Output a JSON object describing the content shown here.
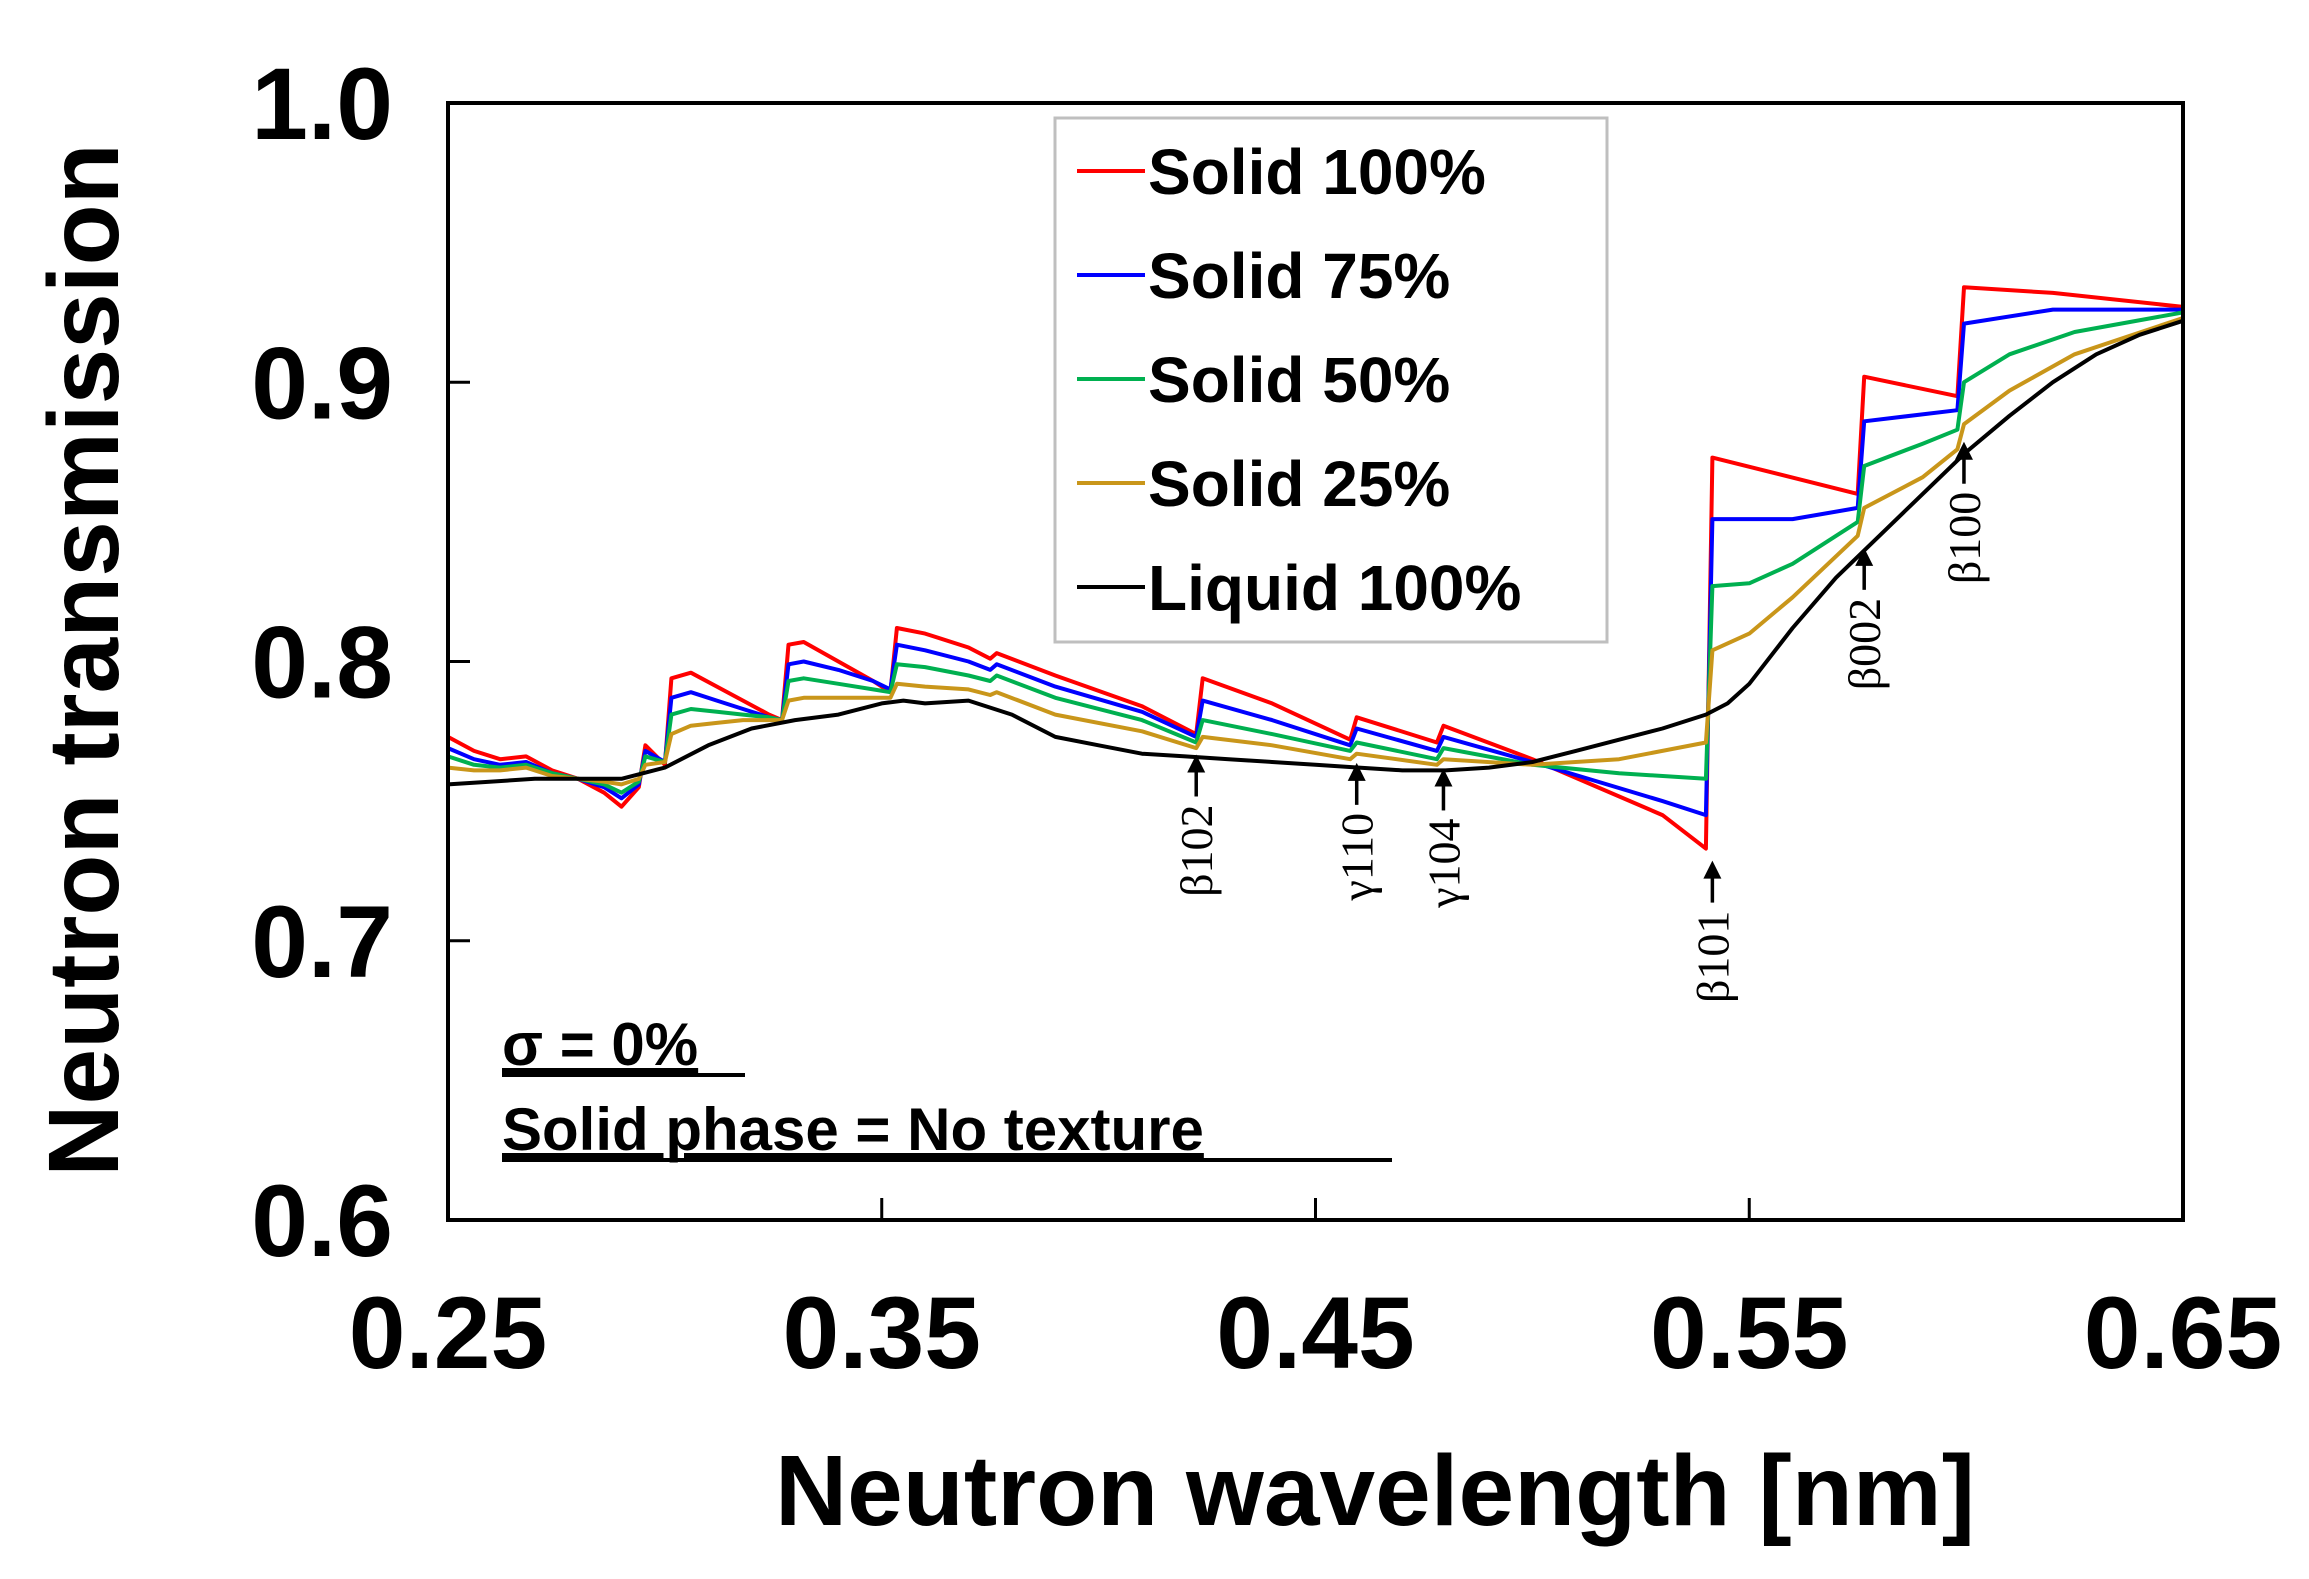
{
  "chart_data": {
    "type": "line",
    "xlabel": "Neutron wavelength [nm]",
    "ylabel": "Neutron transmission",
    "xlim": [
      0.25,
      0.65
    ],
    "ylim": [
      0.6,
      1.0
    ],
    "xticks": [
      "0.25",
      "0.35",
      "0.45",
      "0.55",
      "0.65"
    ],
    "yticks": [
      "0.6",
      "0.7",
      "0.8",
      "0.9",
      "1.0"
    ],
    "grid": false,
    "legend_position": "top-center",
    "series": [
      {
        "name": "Solid 100%",
        "color": "#ff0000",
        "points": [
          [
            0.25,
            0.773
          ],
          [
            0.256,
            0.768
          ],
          [
            0.262,
            0.765
          ],
          [
            0.268,
            0.766
          ],
          [
            0.274,
            0.761
          ],
          [
            0.28,
            0.758
          ],
          [
            0.286,
            0.753
          ],
          [
            0.29,
            0.748
          ],
          [
            0.294,
            0.755
          ],
          [
            0.2955,
            0.77
          ],
          [
            0.3,
            0.763
          ],
          [
            0.3015,
            0.794
          ],
          [
            0.306,
            0.796
          ],
          [
            0.312,
            0.791
          ],
          [
            0.318,
            0.786
          ],
          [
            0.324,
            0.781
          ],
          [
            0.327,
            0.779
          ],
          [
            0.3285,
            0.806
          ],
          [
            0.332,
            0.807
          ],
          [
            0.34,
            0.8
          ],
          [
            0.348,
            0.793
          ],
          [
            0.352,
            0.789
          ],
          [
            0.3535,
            0.812
          ],
          [
            0.36,
            0.81
          ],
          [
            0.37,
            0.805
          ],
          [
            0.375,
            0.801
          ],
          [
            0.3765,
            0.803
          ],
          [
            0.39,
            0.795
          ],
          [
            0.41,
            0.784
          ],
          [
            0.4225,
            0.774
          ],
          [
            0.424,
            0.794
          ],
          [
            0.44,
            0.785
          ],
          [
            0.458,
            0.772
          ],
          [
            0.4595,
            0.78
          ],
          [
            0.478,
            0.771
          ],
          [
            0.4795,
            0.777
          ],
          [
            0.5,
            0.765
          ],
          [
            0.53,
            0.745
          ],
          [
            0.54,
            0.733
          ],
          [
            0.5415,
            0.873
          ],
          [
            0.575,
            0.86
          ],
          [
            0.5765,
            0.902
          ],
          [
            0.598,
            0.895
          ],
          [
            0.5995,
            0.934
          ],
          [
            0.62,
            0.932
          ],
          [
            0.65,
            0.927
          ]
        ]
      },
      {
        "name": "Solid 75%",
        "color": "#0000ff",
        "points": [
          [
            0.25,
            0.769
          ],
          [
            0.256,
            0.765
          ],
          [
            0.262,
            0.763
          ],
          [
            0.268,
            0.764
          ],
          [
            0.274,
            0.76
          ],
          [
            0.28,
            0.758
          ],
          [
            0.286,
            0.755
          ],
          [
            0.29,
            0.751
          ],
          [
            0.294,
            0.756
          ],
          [
            0.2955,
            0.768
          ],
          [
            0.3,
            0.764
          ],
          [
            0.3015,
            0.787
          ],
          [
            0.306,
            0.789
          ],
          [
            0.312,
            0.786
          ],
          [
            0.318,
            0.783
          ],
          [
            0.324,
            0.78
          ],
          [
            0.327,
            0.779
          ],
          [
            0.3285,
            0.799
          ],
          [
            0.332,
            0.8
          ],
          [
            0.34,
            0.797
          ],
          [
            0.348,
            0.793
          ],
          [
            0.352,
            0.79
          ],
          [
            0.3535,
            0.806
          ],
          [
            0.36,
            0.804
          ],
          [
            0.37,
            0.8
          ],
          [
            0.375,
            0.797
          ],
          [
            0.3765,
            0.799
          ],
          [
            0.39,
            0.791
          ],
          [
            0.41,
            0.782
          ],
          [
            0.4225,
            0.773
          ],
          [
            0.424,
            0.786
          ],
          [
            0.44,
            0.779
          ],
          [
            0.458,
            0.77
          ],
          [
            0.4595,
            0.776
          ],
          [
            0.478,
            0.768
          ],
          [
            0.4795,
            0.773
          ],
          [
            0.5,
            0.764
          ],
          [
            0.53,
            0.75
          ],
          [
            0.54,
            0.745
          ],
          [
            0.5415,
            0.851
          ],
          [
            0.56,
            0.851
          ],
          [
            0.575,
            0.855
          ],
          [
            0.5765,
            0.886
          ],
          [
            0.598,
            0.89
          ],
          [
            0.5995,
            0.921
          ],
          [
            0.62,
            0.926
          ],
          [
            0.65,
            0.926
          ]
        ]
      },
      {
        "name": "Solid 50%",
        "color": "#00b050",
        "points": [
          [
            0.25,
            0.766
          ],
          [
            0.256,
            0.763
          ],
          [
            0.262,
            0.762
          ],
          [
            0.268,
            0.763
          ],
          [
            0.274,
            0.76
          ],
          [
            0.28,
            0.758
          ],
          [
            0.286,
            0.756
          ],
          [
            0.29,
            0.753
          ],
          [
            0.294,
            0.757
          ],
          [
            0.2955,
            0.766
          ],
          [
            0.3,
            0.764
          ],
          [
            0.3015,
            0.781
          ],
          [
            0.306,
            0.783
          ],
          [
            0.312,
            0.782
          ],
          [
            0.318,
            0.781
          ],
          [
            0.324,
            0.78
          ],
          [
            0.327,
            0.779
          ],
          [
            0.3285,
            0.793
          ],
          [
            0.332,
            0.794
          ],
          [
            0.34,
            0.792
          ],
          [
            0.348,
            0.79
          ],
          [
            0.352,
            0.789
          ],
          [
            0.3535,
            0.799
          ],
          [
            0.36,
            0.798
          ],
          [
            0.37,
            0.795
          ],
          [
            0.375,
            0.793
          ],
          [
            0.3765,
            0.795
          ],
          [
            0.39,
            0.787
          ],
          [
            0.41,
            0.779
          ],
          [
            0.4225,
            0.771
          ],
          [
            0.424,
            0.779
          ],
          [
            0.44,
            0.774
          ],
          [
            0.458,
            0.768
          ],
          [
            0.4595,
            0.771
          ],
          [
            0.478,
            0.765
          ],
          [
            0.4795,
            0.769
          ],
          [
            0.5,
            0.763
          ],
          [
            0.52,
            0.76
          ],
          [
            0.54,
            0.758
          ],
          [
            0.5415,
            0.827
          ],
          [
            0.55,
            0.828
          ],
          [
            0.56,
            0.835
          ],
          [
            0.575,
            0.85
          ],
          [
            0.5765,
            0.87
          ],
          [
            0.59,
            0.878
          ],
          [
            0.598,
            0.883
          ],
          [
            0.5995,
            0.9
          ],
          [
            0.61,
            0.91
          ],
          [
            0.625,
            0.918
          ],
          [
            0.65,
            0.925
          ]
        ]
      },
      {
        "name": "Solid 25%",
        "color": "#c9961a",
        "points": [
          [
            0.25,
            0.762
          ],
          [
            0.256,
            0.761
          ],
          [
            0.262,
            0.761
          ],
          [
            0.268,
            0.762
          ],
          [
            0.274,
            0.759
          ],
          [
            0.28,
            0.758
          ],
          [
            0.286,
            0.757
          ],
          [
            0.29,
            0.756
          ],
          [
            0.294,
            0.758
          ],
          [
            0.2955,
            0.763
          ],
          [
            0.3,
            0.764
          ],
          [
            0.3015,
            0.774
          ],
          [
            0.306,
            0.777
          ],
          [
            0.312,
            0.778
          ],
          [
            0.318,
            0.779
          ],
          [
            0.324,
            0.779
          ],
          [
            0.327,
            0.779
          ],
          [
            0.3285,
            0.786
          ],
          [
            0.332,
            0.787
          ],
          [
            0.34,
            0.787
          ],
          [
            0.348,
            0.787
          ],
          [
            0.352,
            0.787
          ],
          [
            0.3535,
            0.792
          ],
          [
            0.36,
            0.791
          ],
          [
            0.37,
            0.79
          ],
          [
            0.375,
            0.788
          ],
          [
            0.3765,
            0.789
          ],
          [
            0.39,
            0.781
          ],
          [
            0.41,
            0.775
          ],
          [
            0.4225,
            0.769
          ],
          [
            0.424,
            0.773
          ],
          [
            0.44,
            0.77
          ],
          [
            0.458,
            0.765
          ],
          [
            0.4595,
            0.767
          ],
          [
            0.478,
            0.763
          ],
          [
            0.4795,
            0.765
          ],
          [
            0.5,
            0.763
          ],
          [
            0.52,
            0.765
          ],
          [
            0.54,
            0.771
          ],
          [
            0.5415,
            0.804
          ],
          [
            0.55,
            0.81
          ],
          [
            0.56,
            0.823
          ],
          [
            0.575,
            0.845
          ],
          [
            0.5765,
            0.855
          ],
          [
            0.59,
            0.866
          ],
          [
            0.598,
            0.876
          ],
          [
            0.5995,
            0.885
          ],
          [
            0.61,
            0.897
          ],
          [
            0.625,
            0.91
          ],
          [
            0.65,
            0.923
          ]
        ]
      },
      {
        "name": "Liquid 100%",
        "color": "#000000",
        "points": [
          [
            0.25,
            0.756
          ],
          [
            0.26,
            0.757
          ],
          [
            0.27,
            0.758
          ],
          [
            0.28,
            0.758
          ],
          [
            0.29,
            0.758
          ],
          [
            0.3,
            0.762
          ],
          [
            0.31,
            0.77
          ],
          [
            0.32,
            0.776
          ],
          [
            0.33,
            0.779
          ],
          [
            0.34,
            0.781
          ],
          [
            0.35,
            0.785
          ],
          [
            0.355,
            0.786
          ],
          [
            0.36,
            0.785
          ],
          [
            0.37,
            0.786
          ],
          [
            0.38,
            0.781
          ],
          [
            0.39,
            0.773
          ],
          [
            0.4,
            0.77
          ],
          [
            0.41,
            0.767
          ],
          [
            0.42,
            0.766
          ],
          [
            0.43,
            0.765
          ],
          [
            0.44,
            0.764
          ],
          [
            0.45,
            0.763
          ],
          [
            0.46,
            0.762
          ],
          [
            0.47,
            0.761
          ],
          [
            0.48,
            0.761
          ],
          [
            0.49,
            0.762
          ],
          [
            0.5,
            0.764
          ],
          [
            0.51,
            0.768
          ],
          [
            0.52,
            0.772
          ],
          [
            0.53,
            0.776
          ],
          [
            0.54,
            0.781
          ],
          [
            0.545,
            0.785
          ],
          [
            0.55,
            0.792
          ],
          [
            0.56,
            0.812
          ],
          [
            0.57,
            0.83
          ],
          [
            0.58,
            0.845
          ],
          [
            0.59,
            0.86
          ],
          [
            0.6,
            0.875
          ],
          [
            0.61,
            0.888
          ],
          [
            0.62,
            0.9
          ],
          [
            0.63,
            0.91
          ],
          [
            0.64,
            0.917
          ],
          [
            0.65,
            0.922
          ]
        ]
      }
    ],
    "annotations": [
      {
        "label": "β102",
        "x": 0.4225,
        "y": 0.771
      },
      {
        "label": "γ110",
        "x": 0.4595,
        "y": 0.768
      },
      {
        "label": "γ104",
        "x": 0.4795,
        "y": 0.766
      },
      {
        "label": "β101",
        "x": 0.5415,
        "y": 0.733
      },
      {
        "label": "β002",
        "x": 0.5765,
        "y": 0.845
      },
      {
        "label": "β100",
        "x": 0.5995,
        "y": 0.883
      }
    ],
    "notes": [
      "σ = 0%",
      "Solid phase = No texture"
    ]
  }
}
